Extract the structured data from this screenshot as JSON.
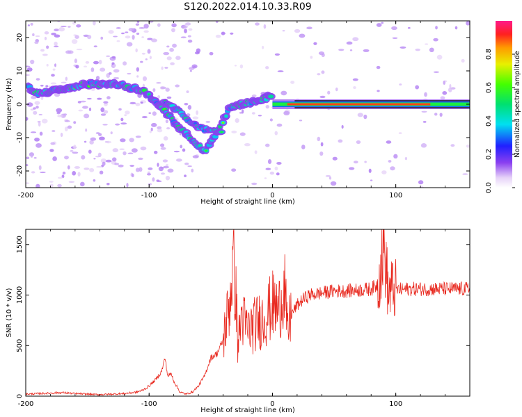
{
  "title": "S120.2022.014.10.33.R09",
  "chart_data": [
    {
      "type": "heatmap",
      "xlabel": "Height of straight line (km)",
      "ylabel": "Frequency (Hz)",
      "xlim": [
        -200,
        160
      ],
      "ylim": [
        -25,
        25
      ],
      "xticks": [
        -200,
        -100,
        0,
        100
      ],
      "yticks": [
        -20,
        -10,
        0,
        10,
        20
      ],
      "colorbar": {
        "label": "Normalized spectral amplitude",
        "range": [
          0,
          1
        ],
        "ticks": [
          "0.0",
          "0.2",
          "0.4",
          "0.6",
          "0.8"
        ]
      },
      "ridge": [
        {
          "x": -198,
          "f": 5
        },
        {
          "x": -190,
          "f": 3
        },
        {
          "x": -180,
          "f": 4
        },
        {
          "x": -165,
          "f": 5
        },
        {
          "x": -150,
          "f": 6
        },
        {
          "x": -140,
          "f": 6
        },
        {
          "x": -125,
          "f": 6
        },
        {
          "x": -115,
          "f": 5
        },
        {
          "x": -105,
          "f": 4
        },
        {
          "x": -95,
          "f": 1
        },
        {
          "x": -85,
          "f": -3
        },
        {
          "x": -75,
          "f": -7
        },
        {
          "x": -65,
          "f": -11
        },
        {
          "x": -55,
          "f": -14
        },
        {
          "x": -45,
          "f": -9
        },
        {
          "x": -35,
          "f": -1
        },
        {
          "x": -25,
          "f": 0
        },
        {
          "x": -10,
          "f": 1
        },
        {
          "x": 0,
          "f": 3
        },
        {
          "x": 5,
          "f": 0
        },
        {
          "x": 20,
          "f": 0
        },
        {
          "x": 80,
          "f": 0
        },
        {
          "x": 90,
          "f": 1
        },
        {
          "x": 120,
          "f": 0
        },
        {
          "x": 160,
          "f": 1
        }
      ],
      "secondary_ridge": [
        {
          "x": -88,
          "f": 1
        },
        {
          "x": -80,
          "f": -1
        },
        {
          "x": -70,
          "f": -4
        },
        {
          "x": -60,
          "f": -7
        },
        {
          "x": -50,
          "f": -8
        },
        {
          "x": -40,
          "f": -8
        }
      ],
      "centerline_start_x": 0,
      "centerline_f": 0
    },
    {
      "type": "line",
      "xlabel": "Height of straight line (km)",
      "ylabel": "SNR (10 * v/v)",
      "xlim": [
        -200,
        160
      ],
      "ylim": [
        0,
        1650
      ],
      "xticks": [
        -200,
        -100,
        0,
        100
      ],
      "yticks": [
        0,
        500,
        1000,
        1500
      ],
      "color": "#e8281e",
      "series": [
        {
          "x": [
            -200,
            -190,
            -180,
            -170,
            -160,
            -150,
            -140,
            -130,
            -120,
            -110,
            -105,
            -100,
            -95,
            -90,
            -87,
            -85,
            -82,
            -80,
            -75,
            -70,
            -65,
            -60,
            -55,
            -50,
            -45,
            -40,
            -35,
            -32,
            -30,
            -28,
            -25,
            -22,
            -20,
            -15,
            -10,
            -5,
            0,
            5,
            10,
            12,
            15,
            20,
            25,
            30,
            40,
            50,
            60,
            70,
            80,
            85,
            88,
            90,
            92,
            94,
            96,
            100,
            110,
            120,
            130,
            140,
            150,
            160
          ],
          "y": [
            20,
            25,
            30,
            35,
            25,
            20,
            15,
            20,
            25,
            40,
            60,
            100,
            160,
            240,
            380,
            200,
            220,
            150,
            40,
            20,
            40,
            100,
            200,
            380,
            420,
            550,
            900,
            1300,
            1100,
            500,
            800,
            700,
            650,
            700,
            750,
            800,
            900,
            850,
            1100,
            600,
            800,
            900,
            960,
            1000,
            1020,
            1040,
            1040,
            1050,
            1060,
            1100,
            1300,
            1500,
            1300,
            1000,
            1060,
            1050,
            1060,
            1060,
            1060,
            1060,
            1060,
            1060
          ]
        }
      ]
    }
  ]
}
